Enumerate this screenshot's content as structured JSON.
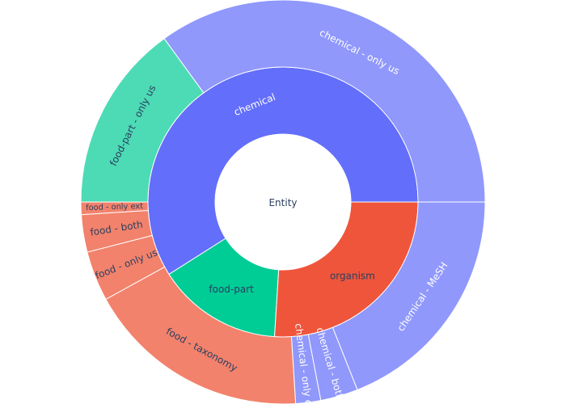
{
  "chart_data": {
    "type": "sunburst",
    "root": {
      "label": "Entity"
    },
    "rings": [
      [
        {
          "label": "chemical",
          "value": 59,
          "color": "#636efa",
          "text_color": "#ffffff"
        },
        {
          "label": "food-part",
          "value": 15,
          "color": "#00cc96",
          "text_color": "#2a3f5f"
        },
        {
          "label": "organism",
          "value": 26,
          "color": "#ef553b",
          "text_color": "#2a3f5f"
        }
      ],
      [
        {
          "label": "chemical - only us",
          "parent": "chemical",
          "value": 35,
          "color": "#9098fc",
          "text_color": "#ffffff"
        },
        {
          "label": "food-part - only us",
          "parent": "food-part",
          "value": 15,
          "color": "#4ddbb5",
          "text_color": "#2a3f5f"
        },
        {
          "label": "food - only ext",
          "parent": "organism",
          "value": 1,
          "color": "#f2826c",
          "text_color": "#2a3f5f"
        },
        {
          "label": "food - both",
          "parent": "organism",
          "value": 3,
          "color": "#f2826c",
          "text_color": "#2a3f5f"
        },
        {
          "label": "food - only us",
          "parent": "organism",
          "value": 4,
          "color": "#f2826c",
          "text_color": "#2a3f5f"
        },
        {
          "label": "food - taxonomy",
          "parent": "organism",
          "value": 18,
          "color": "#f2826c",
          "text_color": "#2a3f5f"
        },
        {
          "label": "chemical - only ext",
          "parent": "chemical",
          "value": 2,
          "color": "#9098fc",
          "text_color": "#ffffff"
        },
        {
          "label": "chemical - both",
          "parent": "chemical",
          "value": 3,
          "color": "#9098fc",
          "text_color": "#ffffff"
        },
        {
          "label": "chemical - MeSH",
          "parent": "chemical",
          "value": 19,
          "color": "#9098fc",
          "text_color": "#ffffff"
        }
      ]
    ],
    "title": "",
    "legend": "none"
  }
}
